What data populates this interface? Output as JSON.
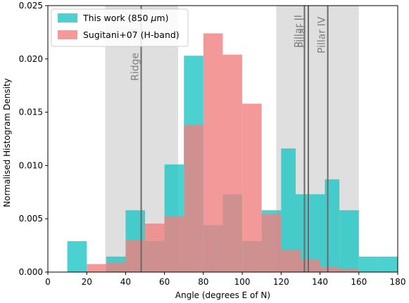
{
  "chart_data": {
    "type": "bar",
    "xlabel": "Angle (degrees E of N)",
    "ylabel": "Normalised Histogram Density",
    "xlim": [
      0,
      180
    ],
    "ylim": [
      0,
      0.025
    ],
    "x_ticks": [
      "0",
      "20",
      "40",
      "60",
      "80",
      "100",
      "120",
      "140",
      "160",
      "180"
    ],
    "y_ticks": [
      "0.000",
      "0.005",
      "0.010",
      "0.015",
      "0.020",
      "0.025"
    ],
    "grid": false,
    "legend_position": "top-left",
    "shaded_regions": [
      {
        "x0": 29.5,
        "x1": 67
      },
      {
        "x0": 117.5,
        "x1": 160
      }
    ],
    "vertical_lines": [
      {
        "x": 48,
        "label": "Ridge"
      },
      {
        "x": 132,
        "label": "Pillar II"
      },
      {
        "x": 134,
        "label": "Pillar I"
      },
      {
        "x": 144,
        "label": "Pillar IV"
      }
    ],
    "series": [
      {
        "name": "This work (850 $\\mu$m)",
        "name_main": "This work (850 ",
        "name_symbol": "μ",
        "name_unit": "m)",
        "color": "#1fc6c6",
        "bins": [
          {
            "x0": 10,
            "x1": 20,
            "y": 0.0029
          },
          {
            "x0": 20,
            "x1": 30,
            "y": 0.0
          },
          {
            "x0": 30,
            "x1": 40,
            "y": 0.00145
          },
          {
            "x0": 40,
            "x1": 50,
            "y": 0.0058
          },
          {
            "x0": 50,
            "x1": 60,
            "y": 0.0029
          },
          {
            "x0": 60,
            "x1": 70,
            "y": 0.0101
          },
          {
            "x0": 70,
            "x1": 80,
            "y": 0.0203
          },
          {
            "x0": 80,
            "x1": 90,
            "y": 0.0044
          },
          {
            "x0": 90,
            "x1": 100,
            "y": 0.0073
          },
          {
            "x0": 100,
            "x1": 110,
            "y": 0.0029
          },
          {
            "x0": 110,
            "x1": 120,
            "y": 0.0058
          },
          {
            "x0": 120,
            "x1": 127.5,
            "y": 0.0116
          },
          {
            "x0": 127.5,
            "x1": 135,
            "y": 0.0073
          },
          {
            "x0": 135,
            "x1": 142.5,
            "y": 0.0073
          },
          {
            "x0": 142.5,
            "x1": 150,
            "y": 0.0087
          },
          {
            "x0": 150,
            "x1": 160,
            "y": 0.0058
          },
          {
            "x0": 160,
            "x1": 170,
            "y": 0.00145
          },
          {
            "x0": 170,
            "x1": 180,
            "y": 0.00145
          }
        ]
      },
      {
        "name": "Sugitani+07 (H-band)",
        "color": "#f08080",
        "bins": [
          {
            "x0": 10,
            "x1": 20,
            "y": 0.0
          },
          {
            "x0": 20,
            "x1": 30,
            "y": 0.00075
          },
          {
            "x0": 30,
            "x1": 40,
            "y": 0.0009
          },
          {
            "x0": 40,
            "x1": 50,
            "y": 0.003
          },
          {
            "x0": 50,
            "x1": 60,
            "y": 0.00455
          },
          {
            "x0": 60,
            "x1": 70,
            "y": 0.0052
          },
          {
            "x0": 70,
            "x1": 80,
            "y": 0.0138
          },
          {
            "x0": 80,
            "x1": 90,
            "y": 0.0224
          },
          {
            "x0": 90,
            "x1": 100,
            "y": 0.0204
          },
          {
            "x0": 100,
            "x1": 110,
            "y": 0.0158
          },
          {
            "x0": 110,
            "x1": 120,
            "y": 0.00545
          },
          {
            "x0": 120,
            "x1": 130,
            "y": 0.0021
          },
          {
            "x0": 130,
            "x1": 140,
            "y": 0.0012
          },
          {
            "x0": 140,
            "x1": 150,
            "y": 0.00045
          },
          {
            "x0": 150,
            "x1": 160,
            "y": 0.0003
          }
        ]
      }
    ]
  }
}
